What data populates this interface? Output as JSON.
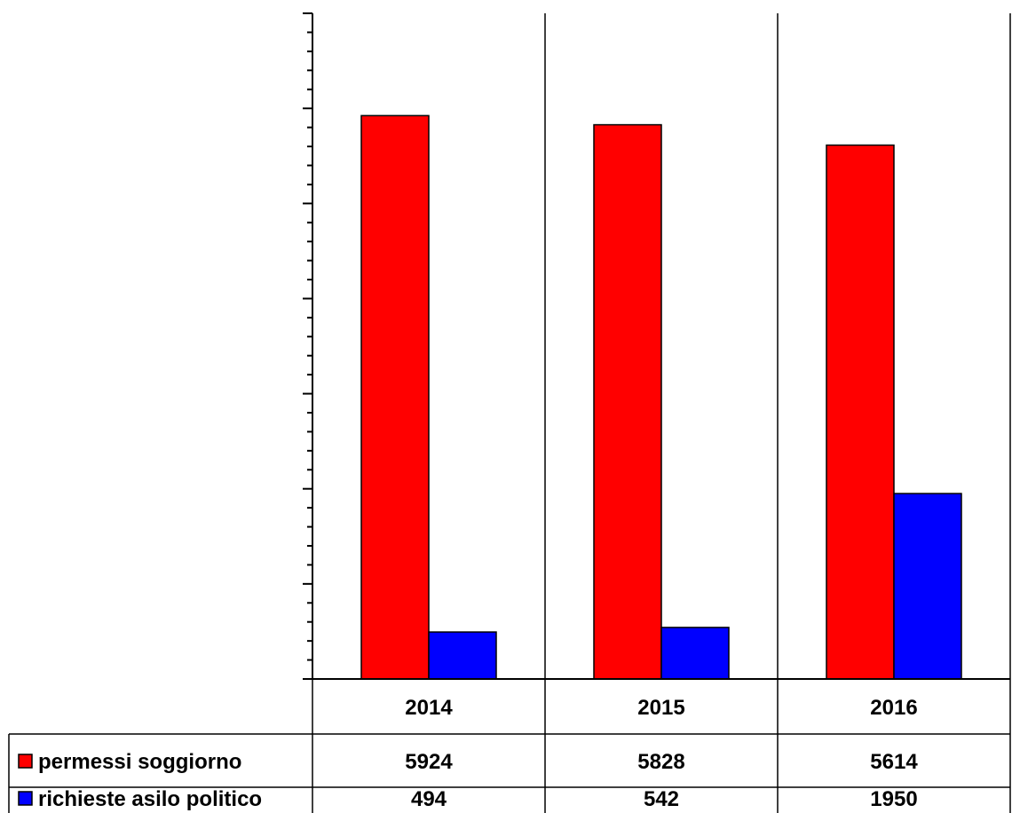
{
  "chart_data": {
    "type": "bar",
    "categories": [
      "2014",
      "2015",
      "2016"
    ],
    "series": [
      {
        "name": "permessi soggiorno",
        "values": [
          5924,
          5828,
          5614
        ],
        "color": "#ff0000"
      },
      {
        "name": "richieste asilo politico",
        "values": [
          494,
          542,
          1950
        ],
        "color": "#0000ff"
      }
    ],
    "ylim": [
      0,
      7000
    ],
    "grid": "vertical separators between categories",
    "legend": "data table",
    "title": "",
    "xlabel": "",
    "ylabel": ""
  }
}
